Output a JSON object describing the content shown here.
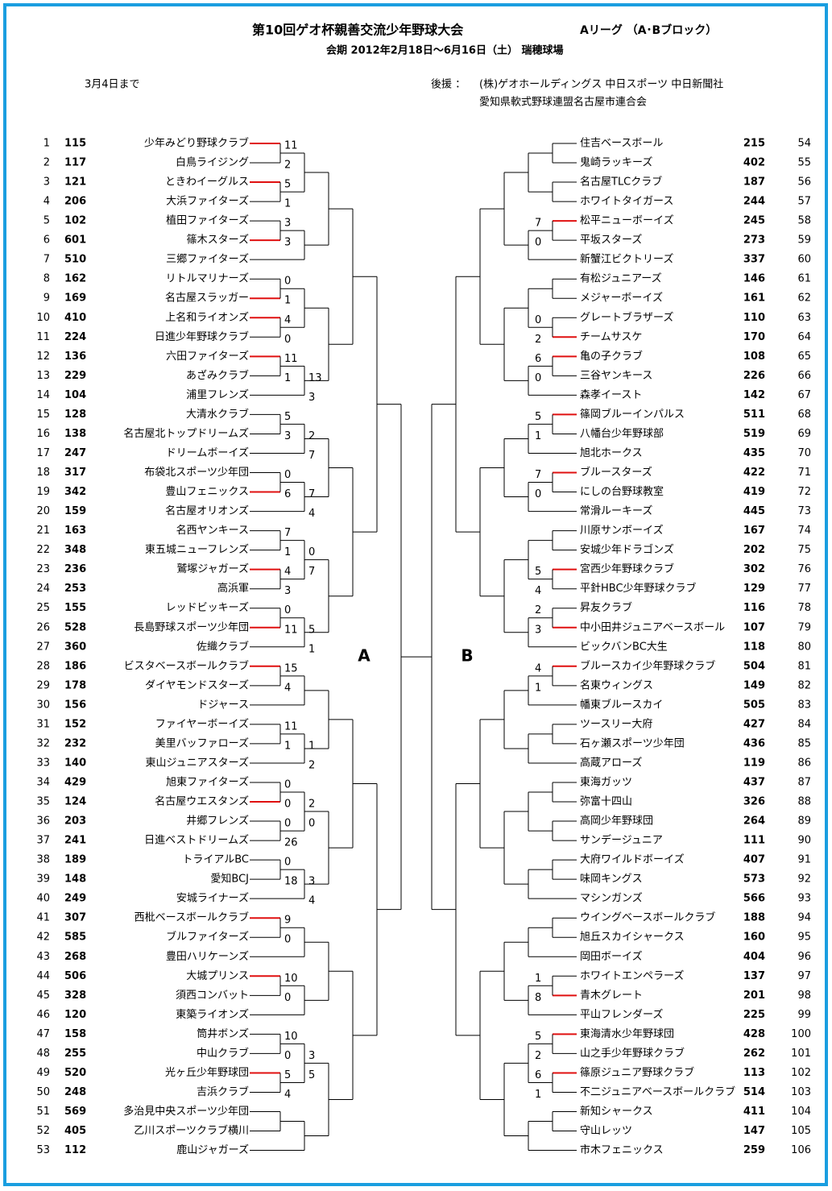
{
  "header": {
    "title": "第10回ゲオ杯親善交流少年野球大会",
    "league": "Aリーグ （A･Bブロック）",
    "period": "会期 2012年2月18日～6月16日（土） 瑞穂球場"
  },
  "note": "3月4日まで",
  "sponsors": {
    "label": "後援 ：",
    "lines": [
      "(株)ゲオホールディングス 中日スポーツ 中日新聞社",
      "愛知県軟式野球連盟名古屋市連合会"
    ]
  },
  "block_labels": [
    "A",
    "B"
  ],
  "left": [
    {
      "no": 1,
      "code": 115,
      "name": "少年みどり野球クラブ",
      "s1": 11
    },
    {
      "no": 2,
      "code": 117,
      "name": "白鳥ライジング",
      "pink": true,
      "s1": 2
    },
    {
      "no": 3,
      "code": 121,
      "name": "ときわイーグルス",
      "s1": 5
    },
    {
      "no": 4,
      "code": 206,
      "name": "大浜ファイターズ",
      "pink": true,
      "s1": 1
    },
    {
      "no": 5,
      "code": 102,
      "name": "植田ファイターズ",
      "pink": true,
      "s1": 3
    },
    {
      "no": 6,
      "code": 601,
      "name": "篠木スターズ",
      "s1": 3
    },
    {
      "no": 7,
      "code": 510,
      "name": "三郷ファイターズ"
    },
    {
      "no": 8,
      "code": 162,
      "name": "リトルマリナーズ",
      "pink": true,
      "s1": 0
    },
    {
      "no": 9,
      "code": 169,
      "name": "名古屋スラッガー",
      "s1": 1
    },
    {
      "no": 10,
      "code": 410,
      "name": "上名和ライオンズ",
      "s1": 4
    },
    {
      "no": 11,
      "code": 224,
      "name": "日進少年野球クラブ",
      "pink": true,
      "s1": 0
    },
    {
      "no": 12,
      "code": 136,
      "name": "六田ファイターズ",
      "s1": 11
    },
    {
      "no": 13,
      "code": 229,
      "name": "あざみクラブ",
      "pink": true,
      "s1": 1,
      "s2": 13
    },
    {
      "no": 14,
      "code": 104,
      "name": "浦里フレンズ",
      "pink": true,
      "s2": 3
    },
    {
      "no": 15,
      "code": 128,
      "name": "大清水クラブ",
      "pink": true,
      "s1": 5
    },
    {
      "no": 16,
      "code": 138,
      "name": "名古屋北トップドリームズ",
      "pink": true,
      "s1": 3,
      "s2": 2
    },
    {
      "no": 17,
      "code": 247,
      "name": "ドリームボーイズ",
      "s2": 7
    },
    {
      "no": 18,
      "code": 317,
      "name": "布袋北スポーツ少年団",
      "pink": true,
      "s1": 0
    },
    {
      "no": 19,
      "code": 342,
      "name": "豊山フェニックス",
      "s1": 6,
      "s2": 7
    },
    {
      "no": 20,
      "code": 159,
      "name": "名古屋オリオンズ",
      "pink": true,
      "s2": 4
    },
    {
      "no": 21,
      "code": 163,
      "name": "名西ヤンキース",
      "pink": true,
      "s1": 7
    },
    {
      "no": 22,
      "code": 348,
      "name": "東五城ニューフレンズ",
      "pink": true,
      "s1": 1,
      "s2": 0
    },
    {
      "no": 23,
      "code": 236,
      "name": "鷲塚ジャガーズ",
      "s1": 4,
      "s2": 7
    },
    {
      "no": 24,
      "code": 253,
      "name": "高浜軍",
      "pink": true,
      "s1": 3
    },
    {
      "no": 25,
      "code": 155,
      "name": "レッドビッキーズ",
      "pink": true,
      "s1": 0
    },
    {
      "no": 26,
      "code": 528,
      "name": "長島野球スポーツ少年団",
      "s1": 11,
      "s2": 5
    },
    {
      "no": 27,
      "code": 360,
      "name": "佐織クラブ",
      "pink": true,
      "s2": 1
    },
    {
      "no": 28,
      "code": 186,
      "name": "ビスタベースボールクラブ",
      "s1": 15
    },
    {
      "no": 29,
      "code": 178,
      "name": "ダイヤモンドスターズ",
      "pink": true,
      "s1": 4
    },
    {
      "no": 30,
      "code": 156,
      "name": "ドジャース"
    },
    {
      "no": 31,
      "code": 152,
      "name": "ファイヤーボーイズ",
      "pink": true,
      "s1": 11
    },
    {
      "no": 32,
      "code": 232,
      "name": "美里バッファローズ",
      "pink": true,
      "s1": 1,
      "s2": 1
    },
    {
      "no": 33,
      "code": 140,
      "name": "東山ジュニアスターズ",
      "s2": 2
    },
    {
      "no": 34,
      "code": 429,
      "name": "旭東ファイターズ",
      "pink": true,
      "s1": 0
    },
    {
      "no": 35,
      "code": 124,
      "name": "名古屋ウエスタンズ",
      "s1": 0,
      "s2": 2
    },
    {
      "no": 36,
      "code": 203,
      "name": "井郷フレンズ",
      "pink": true,
      "s1": 0,
      "s2": 0
    },
    {
      "no": 37,
      "code": 241,
      "name": "日進ベストドリームズ",
      "pink": true,
      "s1": 26
    },
    {
      "no": 38,
      "code": 189,
      "name": "トライアルBC",
      "pink": true,
      "s1": 0
    },
    {
      "no": 39,
      "code": 148,
      "name": "愛知BCJ",
      "pink": true,
      "s1": 18,
      "s2": 3
    },
    {
      "no": 40,
      "code": 249,
      "name": "安城ライナーズ",
      "s2": 4
    },
    {
      "no": 41,
      "code": 307,
      "name": "西枇ベースボールクラブ",
      "s1": 9
    },
    {
      "no": 42,
      "code": 585,
      "name": "ブルファイターズ",
      "pink": true,
      "s1": 0
    },
    {
      "no": 43,
      "code": 268,
      "name": "豊田ハリケーンズ"
    },
    {
      "no": 44,
      "code": 506,
      "name": "大城プリンス",
      "s1": 10
    },
    {
      "no": 45,
      "code": 328,
      "name": "須西コンバット",
      "pink": true,
      "s1": 0
    },
    {
      "no": 46,
      "code": 120,
      "name": "東築ライオンズ"
    },
    {
      "no": 47,
      "code": 158,
      "name": "筒井ボンズ",
      "pink": true,
      "s1": 10
    },
    {
      "no": 48,
      "code": 255,
      "name": "中山クラブ",
      "pink": true,
      "s1": 0,
      "s2": 3
    },
    {
      "no": 49,
      "code": 520,
      "name": "光ヶ丘少年野球団",
      "s1": 5,
      "s2": 5
    },
    {
      "no": 50,
      "code": 248,
      "name": "吉浜クラブ",
      "pink": true,
      "s1": 4
    },
    {
      "no": 51,
      "code": 569,
      "name": "多治見中央スポーツ少年団"
    },
    {
      "no": 52,
      "code": 405,
      "name": "乙川スポーツクラブ横川"
    },
    {
      "no": 53,
      "code": 112,
      "name": "鹿山ジャガーズ"
    }
  ],
  "right": [
    {
      "no": 54,
      "code": 215,
      "name": "住吉ベースボール"
    },
    {
      "no": 55,
      "code": 402,
      "name": "鬼崎ラッキーズ"
    },
    {
      "no": 56,
      "code": 187,
      "name": "名古屋TLCクラブ"
    },
    {
      "no": 57,
      "code": 244,
      "name": "ホワイトタイガース"
    },
    {
      "no": 58,
      "code": 245,
      "name": "松平ニューボーイズ",
      "s1": 7
    },
    {
      "no": 59,
      "code": 273,
      "name": "平坂スターズ",
      "pink": true,
      "s1": 0
    },
    {
      "no": 60,
      "code": 337,
      "name": "新蟹江ビクトリーズ"
    },
    {
      "no": 61,
      "code": 146,
      "name": "有松ジュニアーズ"
    },
    {
      "no": 62,
      "code": 161,
      "name": "メジャーボーイズ"
    },
    {
      "no": 63,
      "code": 110,
      "name": "グレートブラザーズ",
      "pink": true,
      "s1": 0
    },
    {
      "no": 64,
      "code": 170,
      "name": "チームサスケ",
      "s1": 2
    },
    {
      "no": 65,
      "code": 108,
      "name": "亀の子クラブ",
      "s1": 6
    },
    {
      "no": 66,
      "code": 226,
      "name": "三谷ヤンキース",
      "pink": true,
      "s1": 0
    },
    {
      "no": 67,
      "code": 142,
      "name": "森孝イースト"
    },
    {
      "no": 68,
      "code": 511,
      "name": "篠岡ブルーインパルス",
      "s1": 5
    },
    {
      "no": 69,
      "code": 519,
      "name": "八幡台少年野球部",
      "pink": true,
      "s1": 1
    },
    {
      "no": 70,
      "code": 435,
      "name": "旭北ホークス"
    },
    {
      "no": 71,
      "code": 422,
      "name": "ブルースターズ",
      "s1": 7
    },
    {
      "no": 72,
      "code": 419,
      "name": "にしの台野球教室",
      "pink": true,
      "s1": 0
    },
    {
      "no": 73,
      "code": 445,
      "name": "常滑ルーキーズ"
    },
    {
      "no": 74,
      "code": 167,
      "name": "川原サンボーイズ"
    },
    {
      "no": 75,
      "code": 202,
      "name": "安城少年ドラゴンズ"
    },
    {
      "no": 76,
      "code": 302,
      "name": "宮西少年野球クラブ",
      "s1": 5
    },
    {
      "no": 77,
      "code": 129,
      "name": "平針HBC少年野球クラブ",
      "pink": true,
      "s1": 4
    },
    {
      "no": 78,
      "code": 116,
      "name": "昇友クラブ",
      "pink": true,
      "s1": 2
    },
    {
      "no": 79,
      "code": 107,
      "name": "中小田井ジュニアベースボール",
      "s1": 3
    },
    {
      "no": 80,
      "code": 118,
      "name": "ビックバンBC大生"
    },
    {
      "no": 81,
      "code": 504,
      "name": "ブルースカイ少年野球クラブ",
      "s1": 4
    },
    {
      "no": 82,
      "code": 149,
      "name": "名東ウィングス",
      "pink": true,
      "s1": 1
    },
    {
      "no": 83,
      "code": 505,
      "name": "幡東ブルースカイ"
    },
    {
      "no": 84,
      "code": 427,
      "name": "ツースリー大府"
    },
    {
      "no": 85,
      "code": 436,
      "name": "石ヶ瀬スポーツ少年団"
    },
    {
      "no": 86,
      "code": 119,
      "name": "高蔵アローズ"
    },
    {
      "no": 87,
      "code": 437,
      "name": "東海ガッツ"
    },
    {
      "no": 88,
      "code": 326,
      "name": "弥富十四山"
    },
    {
      "no": 89,
      "code": 264,
      "name": "高岡少年野球団"
    },
    {
      "no": 90,
      "code": 111,
      "name": "サンデージュニア"
    },
    {
      "no": 91,
      "code": 407,
      "name": "大府ワイルドボーイズ"
    },
    {
      "no": 92,
      "code": 573,
      "name": "味岡キングス"
    },
    {
      "no": 93,
      "code": 566,
      "name": "マシンガンズ"
    },
    {
      "no": 94,
      "code": 188,
      "name": "ウイングベースボールクラブ"
    },
    {
      "no": 95,
      "code": 160,
      "name": "旭丘スカイシャークス"
    },
    {
      "no": 96,
      "code": 404,
      "name": "岡田ボーイズ"
    },
    {
      "no": 97,
      "code": 137,
      "name": "ホワイトエンペラーズ",
      "pink": true,
      "s1": 1
    },
    {
      "no": 98,
      "code": 201,
      "name": "青木グレート",
      "s1": 8
    },
    {
      "no": 99,
      "code": 225,
      "name": "平山フレンダーズ"
    },
    {
      "no": 100,
      "code": 428,
      "name": "東海清水少年野球団",
      "s1": 5
    },
    {
      "no": 101,
      "code": 262,
      "name": "山之手少年野球クラブ",
      "pink": true,
      "s1": 2
    },
    {
      "no": 102,
      "code": 113,
      "name": "篠原ジュニア野球クラブ",
      "s1": 6
    },
    {
      "no": 103,
      "code": 514,
      "name": "不二ジュニアベースボールクラブ",
      "pink": true,
      "s1": 1
    },
    {
      "no": 104,
      "code": 411,
      "name": "新知シャークス"
    },
    {
      "no": 105,
      "code": 147,
      "name": "守山レッツ"
    },
    {
      "no": 106,
      "code": 259,
      "name": "市木フェニックス"
    }
  ]
}
